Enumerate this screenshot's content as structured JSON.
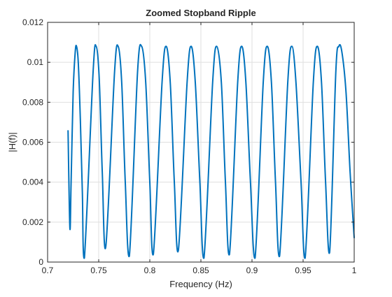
{
  "chart_data": {
    "type": "line",
    "title": "Zoomed Stopband Ripple",
    "xlabel": "Frequency (Hz)",
    "ylabel": "|H(f)|",
    "xlim": [
      0.7,
      1.0
    ],
    "ylim": [
      0,
      0.012
    ],
    "xticks": [
      0.7,
      0.75,
      0.8,
      0.85,
      0.9,
      0.95,
      1.0
    ],
    "xtick_labels": [
      "0.7",
      "0.75",
      "0.8",
      "0.85",
      "0.9",
      "0.95",
      "1"
    ],
    "yticks": [
      0,
      0.002,
      0.004,
      0.006,
      0.008,
      0.01,
      0.012
    ],
    "ytick_labels": [
      "0",
      "0.002",
      "0.004",
      "0.006",
      "0.008",
      "0.01",
      "0.012"
    ],
    "grid": true,
    "line_color": "#0072BD",
    "series": [
      {
        "x": [
          0.72,
          0.7218,
          0.723,
          0.725,
          0.727,
          0.7283,
          0.73,
          0.732,
          0.734,
          0.736,
          0.7445,
          0.7475,
          0.7505,
          0.7535,
          0.757,
          0.7655,
          0.769,
          0.7725,
          0.776,
          0.78,
          0.788,
          0.792,
          0.796,
          0.8,
          0.8035,
          0.812,
          0.816,
          0.82,
          0.824,
          0.828,
          0.8365,
          0.8405,
          0.8445,
          0.849,
          0.853,
          0.8615,
          0.8655,
          0.87,
          0.874,
          0.878,
          0.886,
          0.89,
          0.894,
          0.8985,
          0.903,
          0.911,
          0.915,
          0.919,
          0.923,
          0.927,
          0.935,
          0.939,
          0.943,
          0.948,
          0.952,
          0.96,
          0.964,
          0.968,
          0.972,
          0.976,
          0.982,
          0.985,
          0.988,
          0.992,
          0.996,
          1.0
        ],
        "y": [
          0.0066,
          0.0017,
          0.004,
          0.0085,
          0.0105,
          0.0108,
          0.01,
          0.0072,
          0.0035,
          0.0002,
          0.0095,
          0.0108,
          0.0092,
          0.0045,
          0.0008,
          0.0095,
          0.0108,
          0.009,
          0.004,
          0.0003,
          0.0095,
          0.0108,
          0.009,
          0.004,
          0.0004,
          0.009,
          0.0108,
          0.009,
          0.004,
          0.0006,
          0.009,
          0.0108,
          0.009,
          0.004,
          0.0002,
          0.009,
          0.0108,
          0.009,
          0.004,
          0.0004,
          0.009,
          0.0108,
          0.009,
          0.004,
          0.0002,
          0.009,
          0.0108,
          0.009,
          0.004,
          0.0003,
          0.009,
          0.0108,
          0.009,
          0.004,
          0.0002,
          0.009,
          0.0108,
          0.009,
          0.004,
          0.0005,
          0.0095,
          0.0108,
          0.0105,
          0.0085,
          0.0045,
          0.0012
        ]
      }
    ]
  }
}
